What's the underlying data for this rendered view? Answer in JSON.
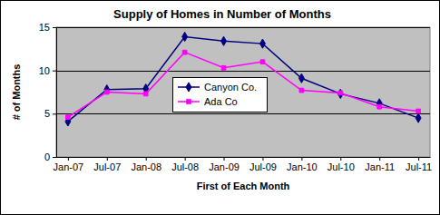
{
  "chart_data": {
    "type": "line",
    "title": "Supply of Homes in Number of Months",
    "x_label": "First of Each Month",
    "y_label": "# of Months",
    "categories": [
      "Jan-07",
      "Jul-07",
      "Jan-08",
      "Jul-08",
      "Jan-09",
      "Jul-09",
      "Jan-10",
      "Jul-10",
      "Jan-11",
      "Jul-11"
    ],
    "series": [
      {
        "name": "Canyon Co.",
        "color": "#000080",
        "marker": "diamond",
        "line_style": "solid",
        "values": [
          4.1,
          7.8,
          7.9,
          13.9,
          13.4,
          13.1,
          9.1,
          7.3,
          6.2,
          4.5
        ]
      },
      {
        "name": "Ada Co",
        "color": "#ff00ff",
        "marker": "square",
        "line_style": "solid",
        "values": [
          4.6,
          7.5,
          7.3,
          12.1,
          10.3,
          11.0,
          7.7,
          7.4,
          5.8,
          5.3
        ]
      }
    ],
    "ylim": [
      0,
      15
    ],
    "yticks": [
      0,
      5,
      10,
      15
    ],
    "grid": true,
    "legend": "center"
  }
}
